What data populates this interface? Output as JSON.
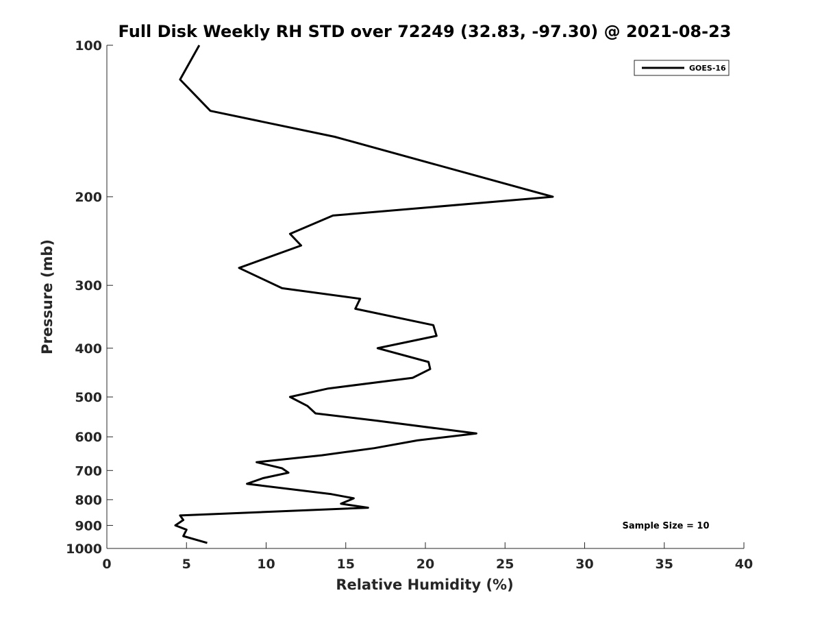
{
  "chart_data": {
    "type": "line",
    "title": "Full Disk Weekly RH STD over 72249 (32.83, -97.30) @ 2021-08-23",
    "xlabel": "Relative Humidity (%)",
    "ylabel": "Pressure (mb)",
    "xlim": [
      0,
      40
    ],
    "ylim": [
      100,
      1000
    ],
    "yscale": "log",
    "y_reversed": true,
    "grid": false,
    "x_ticks": [
      0,
      5,
      10,
      15,
      20,
      25,
      30,
      35,
      40
    ],
    "x_tick_labels": [
      "0",
      "5",
      "10",
      "15",
      "20",
      "25",
      "30",
      "35",
      "40"
    ],
    "y_ticks": [
      100,
      200,
      300,
      400,
      500,
      600,
      700,
      800,
      900,
      1000
    ],
    "y_tick_labels": [
      "100",
      "200",
      "300",
      "400",
      "500",
      "600",
      "700",
      "800",
      "900",
      "1000"
    ],
    "legend": {
      "placement": "top-right",
      "entries": [
        "GOES-16"
      ]
    },
    "annotation": "Sample Size = 10",
    "series": [
      {
        "name": "GOES-16",
        "color": "#000000",
        "x": [
          5.8,
          4.6,
          6.5,
          14.3,
          28.0,
          14.2,
          11.5,
          12.2,
          8.3,
          11.0,
          15.9,
          15.6,
          20.5,
          20.7,
          17.0,
          20.2,
          20.3,
          19.2,
          13.9,
          11.5,
          12.6,
          13.1,
          16.9,
          23.2,
          19.5,
          16.8,
          13.5,
          9.4,
          11.0,
          11.4,
          9.8,
          8.8,
          14.1,
          15.5,
          14.7,
          16.4,
          4.6,
          4.8,
          4.3,
          5.0,
          4.8,
          6.3
        ],
        "y": [
          100,
          117,
          135,
          152,
          200,
          218,
          237,
          250,
          277,
          304,
          319,
          334,
          360,
          378,
          400,
          426,
          440,
          458,
          481,
          500,
          521,
          539,
          557,
          591,
          610,
          632,
          653,
          674,
          693,
          707,
          725,
          744,
          780,
          795,
          815,
          830,
          860,
          878,
          900,
          918,
          945,
          975
        ]
      }
    ]
  }
}
